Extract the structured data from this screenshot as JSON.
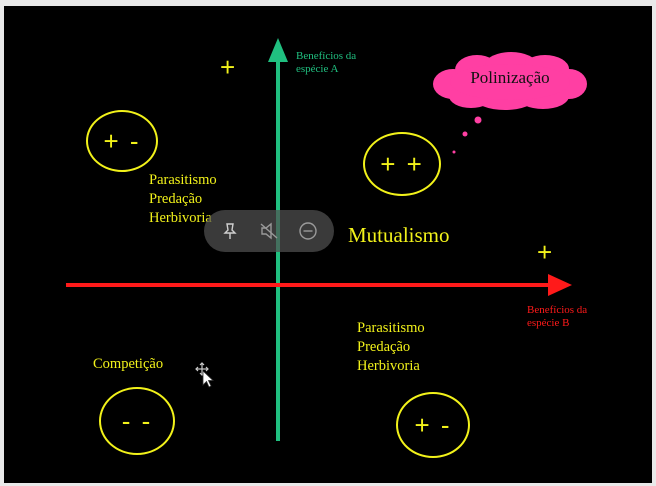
{
  "slide": {
    "axis_y_label_line1": "Benefícios da",
    "axis_y_label_line2": "espécie A",
    "axis_x_label_line1": "Benefícios da",
    "axis_x_label_line2": "espécie B",
    "top_plus": "+",
    "right_plus": "+",
    "cloud_label": "Polinização",
    "top_left_circle": "+ -",
    "top_right_circle": "+ +",
    "bottom_left_circle": "- -",
    "bottom_right_circle": "+ -",
    "top_left_list": [
      "Parasitismo",
      "Predação",
      "Herbivoria"
    ],
    "bottom_right_list": [
      "Parasitismo",
      "Predação",
      "Herbivoria"
    ],
    "mutualism_label": "Mutualismo",
    "competition_label": "Competição"
  },
  "colors": {
    "background": "#000000",
    "text_yellow": "#f2f21a",
    "axis_vertical": "#20c080",
    "axis_horizontal": "#ff1a1a",
    "cloud_fill": "#ff3fa3"
  },
  "toolbar": {
    "icons": [
      "pin-icon",
      "mute-icon",
      "zoom-out-icon"
    ]
  }
}
